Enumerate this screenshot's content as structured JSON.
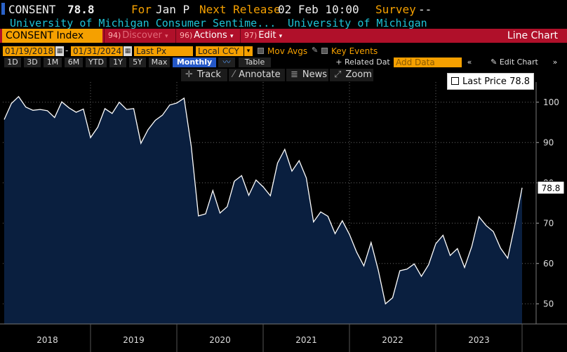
{
  "header": {
    "ticker": "CONSENT",
    "last_value": "78.8",
    "for_label": "For",
    "for_value": "Jan P",
    "next_release_label": "Next Release",
    "next_release_value": "02 Feb 10:00",
    "survey_label": "Survey",
    "survey_value": "--",
    "description": "University of Michigan Consumer Sentime...",
    "source": "University of Michigan"
  },
  "toolbar": {
    "index_name": "CONSENT Index",
    "discover": "Discover",
    "discover_num": "94)",
    "actions": "Actions",
    "actions_num": "96)",
    "edit": "Edit",
    "edit_num": "97)",
    "chart_type": "Line Chart"
  },
  "controls": {
    "start_date": "01/19/2018",
    "end_date": "01/31/2024",
    "field": "Last Px",
    "currency": "Local CCY",
    "mov_avgs": "Mov Avgs",
    "key_events": "Key Events"
  },
  "periods": {
    "items": [
      "1D",
      "3D",
      "1M",
      "6M",
      "YTD",
      "1Y",
      "5Y",
      "Max"
    ],
    "frequency": "Monthly ▼",
    "table": "Table",
    "related": "+ Related Dat",
    "add_data_placeholder": "Add Data",
    "edit_chart": "Edit Chart"
  },
  "tools": {
    "track": "Track",
    "annotate": "Annotate",
    "news": "News",
    "zoom": "Zoom"
  },
  "legend": {
    "label": "Last Price",
    "value": "78.8"
  },
  "colors": {
    "accent": "#f5a000",
    "toolbar_red": "#b0102a",
    "line": "#ffffff",
    "area": "#0a1f3f"
  },
  "chart_data": {
    "type": "area",
    "series_name": "Last Price",
    "x_start": "2018-01",
    "x_end": "2024-01",
    "x_ticks": [
      "2018",
      "2019",
      "2020",
      "2021",
      "2022",
      "2023"
    ],
    "y_ticks": [
      50,
      60,
      70,
      80,
      90,
      100
    ],
    "ylim": [
      45,
      105
    ],
    "last_value_label": "78.8",
    "values": [
      95.7,
      99.7,
      101.4,
      98.8,
      98.0,
      98.2,
      97.9,
      96.2,
      100.1,
      98.6,
      97.5,
      98.3,
      91.2,
      93.8,
      98.4,
      97.2,
      100.0,
      98.2,
      98.4,
      89.8,
      93.2,
      95.5,
      96.8,
      99.3,
      99.8,
      101.0,
      89.1,
      71.8,
      72.3,
      78.1,
      72.5,
      74.1,
      80.4,
      81.8,
      76.9,
      80.7,
      79.0,
      76.8,
      84.9,
      88.3,
      82.9,
      85.5,
      81.2,
      70.3,
      72.8,
      71.7,
      67.4,
      70.6,
      67.2,
      62.8,
      59.4,
      65.2,
      58.4,
      50.0,
      51.5,
      58.2,
      58.6,
      59.9,
      56.8,
      59.7,
      64.9,
      67.0,
      62.0,
      63.7,
      59.0,
      64.2,
      71.6,
      69.4,
      67.9,
      63.8,
      61.3,
      69.7,
      78.8
    ]
  }
}
